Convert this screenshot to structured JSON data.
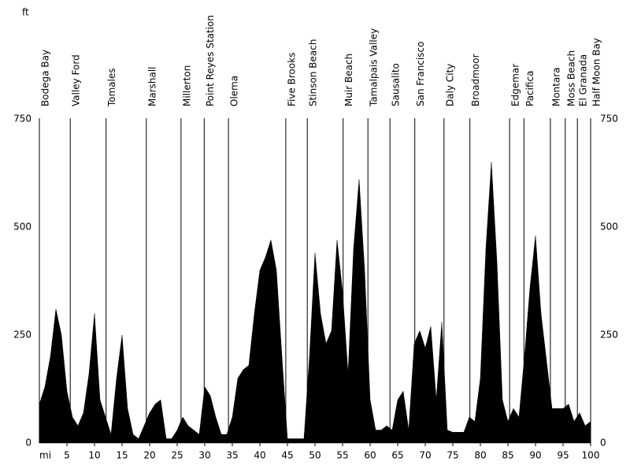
{
  "chart_data": {
    "type": "area",
    "color": "#000000",
    "x_label": "mi",
    "y_label": "ft",
    "xlim": [
      0,
      100
    ],
    "ylim": [
      0,
      750
    ],
    "xticks": [
      5,
      10,
      15,
      20,
      25,
      30,
      35,
      40,
      45,
      50,
      55,
      60,
      65,
      70,
      75,
      80,
      85,
      90,
      95,
      100
    ],
    "yticks": [
      0,
      250,
      500,
      750
    ],
    "x": [
      0,
      1,
      2,
      3,
      4,
      5,
      6,
      7,
      8,
      9,
      10,
      11,
      12,
      13,
      14,
      15,
      16,
      17,
      18,
      19,
      20,
      21,
      22,
      23,
      24,
      25,
      26,
      27,
      28,
      29,
      30,
      31,
      32,
      33,
      34,
      35,
      36,
      37,
      38,
      39,
      40,
      41,
      42,
      43,
      44,
      45,
      46,
      47,
      48,
      49,
      50,
      51,
      52,
      53,
      54,
      55,
      56,
      57,
      58,
      59,
      60,
      61,
      62,
      63,
      64,
      65,
      66,
      67,
      68,
      69,
      70,
      71,
      72,
      73,
      74,
      75,
      76,
      77,
      78,
      79,
      80,
      81,
      82,
      83,
      84,
      85,
      86,
      87,
      88,
      89,
      90,
      91,
      92,
      93,
      94,
      95,
      96,
      97,
      98,
      99,
      100
    ],
    "values": [
      90,
      130,
      200,
      310,
      250,
      120,
      60,
      40,
      70,
      160,
      300,
      100,
      60,
      20,
      150,
      250,
      80,
      20,
      10,
      40,
      70,
      90,
      100,
      10,
      10,
      30,
      60,
      40,
      30,
      20,
      130,
      110,
      60,
      20,
      20,
      60,
      150,
      170,
      180,
      300,
      400,
      430,
      470,
      400,
      200,
      10,
      10,
      10,
      10,
      200,
      440,
      300,
      230,
      260,
      470,
      350,
      160,
      450,
      610,
      400,
      100,
      30,
      30,
      40,
      30,
      100,
      120,
      30,
      230,
      260,
      220,
      270,
      100,
      280,
      30,
      25,
      25,
      25,
      60,
      50,
      150,
      450,
      650,
      420,
      100,
      50,
      80,
      60,
      200,
      360,
      480,
      300,
      190,
      80,
      80,
      80,
      90,
      50,
      70,
      40,
      50
    ],
    "markers": [
      {
        "label": "Bodega Bay",
        "x": 0
      },
      {
        "label": "Valley Ford",
        "x": 5.6
      },
      {
        "label": "Tomales",
        "x": 12.1
      },
      {
        "label": "Marshall",
        "x": 19.4
      },
      {
        "label": "Millerton",
        "x": 25.7
      },
      {
        "label": "Point Reyes Station",
        "x": 29.9
      },
      {
        "label": "Olema",
        "x": 34.3
      },
      {
        "label": "Five Brooks",
        "x": 44.7
      },
      {
        "label": "Stinson Beach",
        "x": 48.6
      },
      {
        "label": "Muir Beach",
        "x": 55.1
      },
      {
        "label": "Tamalpais Valley",
        "x": 59.6
      },
      {
        "label": "Sausalito",
        "x": 63.6
      },
      {
        "label": "San Francisco",
        "x": 68.1
      },
      {
        "label": "Daly City",
        "x": 73.4
      },
      {
        "label": "Broadmoor",
        "x": 78.1
      },
      {
        "label": "Edgemar",
        "x": 85.3
      },
      {
        "label": "Pacifica",
        "x": 87.9
      },
      {
        "label": "Montara",
        "x": 92.7
      },
      {
        "label": "Moss Beach",
        "x": 95.4
      },
      {
        "label": "El Granada",
        "x": 97.6
      },
      {
        "label": "Half Moon Bay",
        "x": 100
      }
    ]
  }
}
